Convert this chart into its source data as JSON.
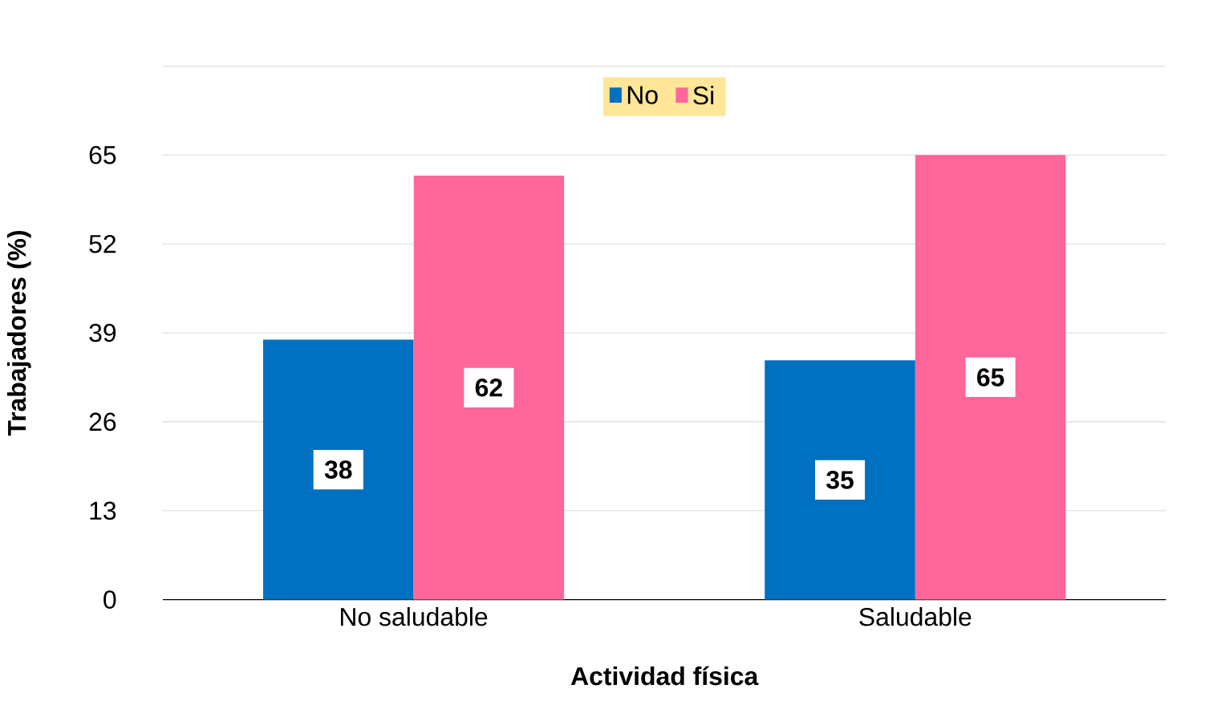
{
  "chart_data": {
    "type": "bar",
    "xlabel": "Actividad física",
    "ylabel": "Trabajadores (%)",
    "categories": [
      "No saludable",
      "Saludable"
    ],
    "series": [
      {
        "name": "No",
        "color": "#0070c0",
        "values": [
          38,
          35
        ]
      },
      {
        "name": "Si",
        "color": "#ff6699",
        "values": [
          62,
          65
        ]
      }
    ],
    "ylim": [
      0,
      78
    ],
    "yticks": [
      0,
      13,
      26,
      39,
      52,
      65,
      {
        "value": 78,
        "label": null
      }
    ],
    "grid": "y",
    "legend": "top",
    "data_labels": true
  }
}
